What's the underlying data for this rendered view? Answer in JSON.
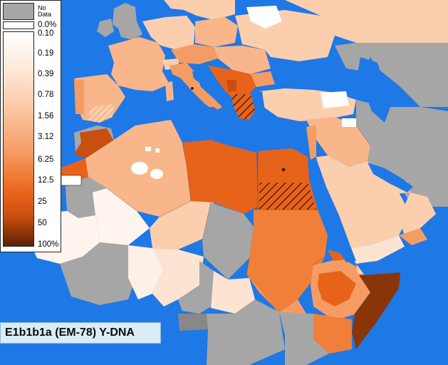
{
  "legend": {
    "no_data_label": "No\nData",
    "stops": [
      "0.0%",
      "0.10",
      "0.19",
      "0.39",
      "0.78",
      "1.56",
      "3.12",
      "6.25",
      "12.5",
      "25",
      "50",
      "100%"
    ],
    "colors": {
      "no_data": "#a6a6a6",
      "zero": "#ffffff",
      "low": "#fde4d2",
      "mid": "#f59c64",
      "high": "#e8631a",
      "very_high": "#8a3508",
      "max": "#5a2004"
    }
  },
  "map": {
    "sea_color": "#1e78e6",
    "no_data_color": "#a6a6a6"
  },
  "title": "E1b1b1a (EM-78) Y-DNA"
}
